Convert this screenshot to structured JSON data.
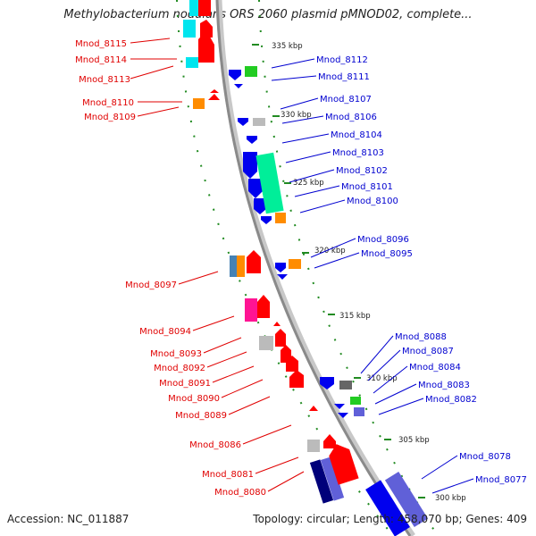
{
  "title": "Methylobacterium nodulans ORS 2060 plasmid pMNOD02, complete...",
  "footer": {
    "accession": "Accession: NC_011887",
    "summary": "Topology: circular; Length: 458,070 bp; Genes: 409"
  },
  "colors": {
    "red": "#ff0000",
    "blue": "#0000ee",
    "cyan": "#00e5ee",
    "green": "#22cc22",
    "orange": "#ff8c00",
    "gray": "#bbbbbb",
    "magenta": "#ff1493",
    "navy": "#00007a",
    "slateblue": "#6060d8",
    "teal": "#00ee99",
    "steelblue": "#4682b4",
    "darkgray": "#666666"
  },
  "kbp_ticks": [
    {
      "label": "335 kbp"
    },
    {
      "label": "330 kbp"
    },
    {
      "label": "325 kbp"
    },
    {
      "label": "320 kbp"
    },
    {
      "label": "315 kbp"
    },
    {
      "label": "310 kbp"
    },
    {
      "label": "305 kbp"
    },
    {
      "label": "300 kbp"
    }
  ],
  "labels_left": [
    {
      "text": "Mnod_8115"
    },
    {
      "text": "Mnod_8114"
    },
    {
      "text": "Mnod_8113"
    },
    {
      "text": "Mnod_8110"
    },
    {
      "text": "Mnod_8109"
    },
    {
      "text": "Mnod_8097"
    },
    {
      "text": "Mnod_8094"
    },
    {
      "text": "Mnod_8093"
    },
    {
      "text": "Mnod_8092"
    },
    {
      "text": "Mnod_8091"
    },
    {
      "text": "Mnod_8090"
    },
    {
      "text": "Mnod_8089"
    },
    {
      "text": "Mnod_8086"
    },
    {
      "text": "Mnod_8081"
    },
    {
      "text": "Mnod_8080"
    }
  ],
  "labels_right": [
    {
      "text": "Mnod_8112"
    },
    {
      "text": "Mnod_8111"
    },
    {
      "text": "Mnod_8107"
    },
    {
      "text": "Mnod_8106"
    },
    {
      "text": "Mnod_8104"
    },
    {
      "text": "Mnod_8103"
    },
    {
      "text": "Mnod_8102"
    },
    {
      "text": "Mnod_8101"
    },
    {
      "text": "Mnod_8100"
    },
    {
      "text": "Mnod_8096"
    },
    {
      "text": "Mnod_8095"
    },
    {
      "text": "Mnod_8088"
    },
    {
      "text": "Mnod_8087"
    },
    {
      "text": "Mnod_8084"
    },
    {
      "text": "Mnod_8083"
    },
    {
      "text": "Mnod_8082"
    },
    {
      "text": "Mnod_8078"
    },
    {
      "text": "Mnod_8077"
    }
  ]
}
